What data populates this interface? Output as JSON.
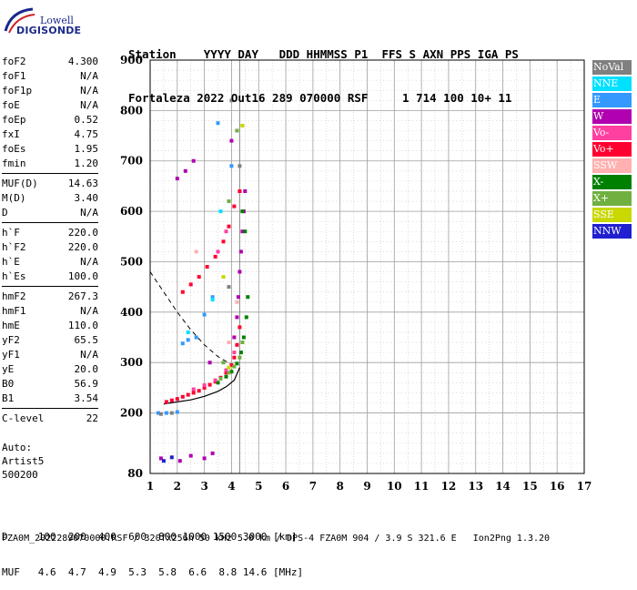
{
  "logo": {
    "line1": "Lowell",
    "line2": "DIGISONDE"
  },
  "header": {
    "line1": "Station    YYYY DAY   DDD HHMMSS P1  FFS S AXN PPS IGA PS",
    "line2": "Fortaleza 2022 Out16 289 070000 RSF     1 714 100 10+ 11"
  },
  "params": {
    "group1": [
      {
        "name": "foF2",
        "value": "4.300"
      },
      {
        "name": "foF1",
        "value": "N/A"
      },
      {
        "name": "foF1p",
        "value": "N/A"
      },
      {
        "name": "foE",
        "value": "N/A"
      },
      {
        "name": "foEp",
        "value": "0.52"
      },
      {
        "name": "fxI",
        "value": "4.75"
      },
      {
        "name": "foEs",
        "value": "1.95"
      },
      {
        "name": "fmin",
        "value": "1.20"
      }
    ],
    "group2": [
      {
        "name": "MUF(D)",
        "value": "14.63"
      },
      {
        "name": "M(D)",
        "value": "3.40"
      },
      {
        "name": "D",
        "value": "N/A"
      }
    ],
    "group3": [
      {
        "name": "h`F",
        "value": "220.0"
      },
      {
        "name": "h`F2",
        "value": "220.0"
      },
      {
        "name": "h`E",
        "value": "N/A"
      },
      {
        "name": "h`Es",
        "value": "100.0"
      }
    ],
    "group4": [
      {
        "name": "hmF2",
        "value": "267.3"
      },
      {
        "name": "hmF1",
        "value": "N/A"
      },
      {
        "name": "hmE",
        "value": "110.0"
      },
      {
        "name": "yF2",
        "value": "65.5"
      },
      {
        "name": "yF1",
        "value": "N/A"
      },
      {
        "name": "yE",
        "value": "20.0"
      },
      {
        "name": "B0",
        "value": "56.9"
      },
      {
        "name": "B1",
        "value": "3.54"
      }
    ],
    "group5": [
      {
        "name": "C-level",
        "value": "22"
      }
    ]
  },
  "auto": {
    "line1": "Auto:",
    "line2": "Artist5",
    "line3": "500200"
  },
  "footer": {
    "d_row": "D     100  200  400  600  800 1000 1500 3000 [km]",
    "muf_row": "MUF   4.6  4.7  4.9  5.3  5.8  6.6  8.8 14.6 [MHz]",
    "file_row": "FZA0M_2022289070000.RSF / 320fx256h 50 kHz 5.0 km / DPS-4 FZA0M 904 / 3.9 S 321.6 E   Ion2Png 1.3.20"
  },
  "legend": [
    {
      "label": "NoVal",
      "color": "#808080"
    },
    {
      "label": "NNE",
      "color": "#00e0ff"
    },
    {
      "label": "E",
      "color": "#3399ff"
    },
    {
      "label": "W",
      "color": "#b000b0"
    },
    {
      "label": "Vo-",
      "color": "#ff40a0"
    },
    {
      "label": "Vo+",
      "color": "#ff0030"
    },
    {
      "label": "SSW",
      "color": "#ffb0b0"
    },
    {
      "label": "X-",
      "color": "#008000"
    },
    {
      "label": "X+",
      "color": "#70b040"
    },
    {
      "label": "SSE",
      "color": "#c8d800"
    },
    {
      "label": "NNW",
      "color": "#2020d0"
    }
  ],
  "chart_data": {
    "type": "scatter",
    "xlabel": "",
    "ylabel": "",
    "xlim": [
      1,
      17
    ],
    "ylim": [
      80,
      900
    ],
    "x_ticks": [
      "1",
      "2",
      "3",
      "4",
      "5",
      "6",
      "7",
      "8",
      "9",
      "10",
      "11",
      "12",
      "13",
      "14",
      "15",
      "16",
      "17"
    ],
    "y_ticks": [
      "80",
      "200",
      "300",
      "400",
      "500",
      "600",
      "700",
      "800",
      "900"
    ],
    "y_tick_values": [
      80,
      200,
      300,
      400,
      500,
      600,
      700,
      800,
      900
    ],
    "grid": true,
    "legend_position": "right",
    "foF2_marker": 4.3,
    "series": [
      {
        "name": "Vo+",
        "color": "#ff0030",
        "points": [
          [
            1.6,
            222
          ],
          [
            1.8,
            225
          ],
          [
            2.0,
            228
          ],
          [
            2.2,
            232
          ],
          [
            2.4,
            236
          ],
          [
            2.6,
            240
          ],
          [
            2.8,
            244
          ],
          [
            3.0,
            250
          ],
          [
            3.2,
            256
          ],
          [
            3.4,
            262
          ],
          [
            3.6,
            270
          ],
          [
            3.8,
            280
          ],
          [
            4.0,
            295
          ],
          [
            4.1,
            310
          ],
          [
            4.2,
            335
          ],
          [
            4.3,
            370
          ],
          [
            2.2,
            440
          ],
          [
            2.5,
            455
          ],
          [
            2.8,
            470
          ],
          [
            3.1,
            490
          ],
          [
            3.4,
            510
          ],
          [
            3.7,
            540
          ],
          [
            3.9,
            570
          ],
          [
            4.1,
            610
          ],
          [
            4.3,
            640
          ]
        ]
      },
      {
        "name": "W",
        "color": "#b000b0",
        "points": [
          [
            4.1,
            350
          ],
          [
            4.2,
            390
          ],
          [
            4.25,
            430
          ],
          [
            4.3,
            480
          ],
          [
            4.35,
            520
          ],
          [
            4.4,
            560
          ],
          [
            4.45,
            600
          ],
          [
            4.5,
            640
          ],
          [
            3.2,
            300
          ],
          [
            4.0,
            740
          ],
          [
            2.0,
            665
          ],
          [
            2.3,
            680
          ],
          [
            2.6,
            700
          ],
          [
            1.4,
            110
          ],
          [
            2.1,
            105
          ],
          [
            2.5,
            115
          ],
          [
            3.0,
            110
          ],
          [
            3.3,
            120
          ]
        ]
      },
      {
        "name": "X-",
        "color": "#008000",
        "points": [
          [
            3.8,
            272
          ],
          [
            4.0,
            282
          ],
          [
            4.2,
            298
          ],
          [
            4.35,
            320
          ],
          [
            4.45,
            350
          ],
          [
            4.55,
            390
          ],
          [
            4.6,
            430
          ],
          [
            3.5,
            260
          ],
          [
            4.4,
            600
          ],
          [
            4.5,
            560
          ]
        ]
      },
      {
        "name": "X+",
        "color": "#70b040",
        "points": [
          [
            3.6,
            268
          ],
          [
            3.9,
            280
          ],
          [
            4.1,
            292
          ],
          [
            4.3,
            310
          ],
          [
            4.4,
            340
          ],
          [
            3.7,
            300
          ],
          [
            3.9,
            620
          ],
          [
            4.2,
            760
          ]
        ]
      },
      {
        "name": "E",
        "color": "#3399ff",
        "points": [
          [
            1.3,
            200
          ],
          [
            1.6,
            200
          ],
          [
            2.0,
            202
          ],
          [
            2.2,
            338
          ],
          [
            2.4,
            345
          ],
          [
            2.7,
            350
          ],
          [
            3.0,
            395
          ],
          [
            3.3,
            430
          ],
          [
            4.0,
            690
          ],
          [
            3.5,
            775
          ]
        ]
      },
      {
        "name": "Vo-",
        "color": "#ff40a0",
        "points": [
          [
            2.6,
            247
          ],
          [
            3.0,
            255
          ],
          [
            3.4,
            265
          ],
          [
            3.8,
            285
          ],
          [
            4.1,
            320
          ],
          [
            3.5,
            520
          ],
          [
            3.8,
            560
          ]
        ]
      },
      {
        "name": "NNE",
        "color": "#00e0ff",
        "points": [
          [
            2.4,
            360
          ],
          [
            3.3,
            425
          ],
          [
            3.6,
            600
          ]
        ]
      },
      {
        "name": "SSW",
        "color": "#ffb0b0",
        "points": [
          [
            3.9,
            340
          ],
          [
            4.2,
            420
          ],
          [
            2.7,
            520
          ]
        ]
      },
      {
        "name": "SSE",
        "color": "#c8d800",
        "points": [
          [
            3.7,
            470
          ],
          [
            3.9,
            290
          ],
          [
            4.4,
            770
          ]
        ]
      },
      {
        "name": "NNW",
        "color": "#2020d0",
        "points": [
          [
            1.5,
            105
          ],
          [
            1.8,
            112
          ]
        ]
      },
      {
        "name": "NoVal",
        "color": "#808080",
        "points": [
          [
            1.4,
            198
          ],
          [
            1.8,
            200
          ],
          [
            3.9,
            450
          ],
          [
            4.0,
            820
          ],
          [
            4.3,
            690
          ]
        ]
      }
    ],
    "profile_solid": [
      [
        1.5,
        218
      ],
      [
        2.0,
        222
      ],
      [
        2.5,
        226
      ],
      [
        3.0,
        233
      ],
      [
        3.5,
        243
      ],
      [
        3.8,
        252
      ],
      [
        4.1,
        265
      ],
      [
        4.3,
        290
      ]
    ],
    "profile_dashed": [
      [
        1.0,
        480
      ],
      [
        1.5,
        440
      ],
      [
        2.0,
        400
      ],
      [
        2.5,
        365
      ],
      [
        3.0,
        335
      ],
      [
        3.5,
        312
      ],
      [
        4.0,
        296
      ]
    ]
  }
}
